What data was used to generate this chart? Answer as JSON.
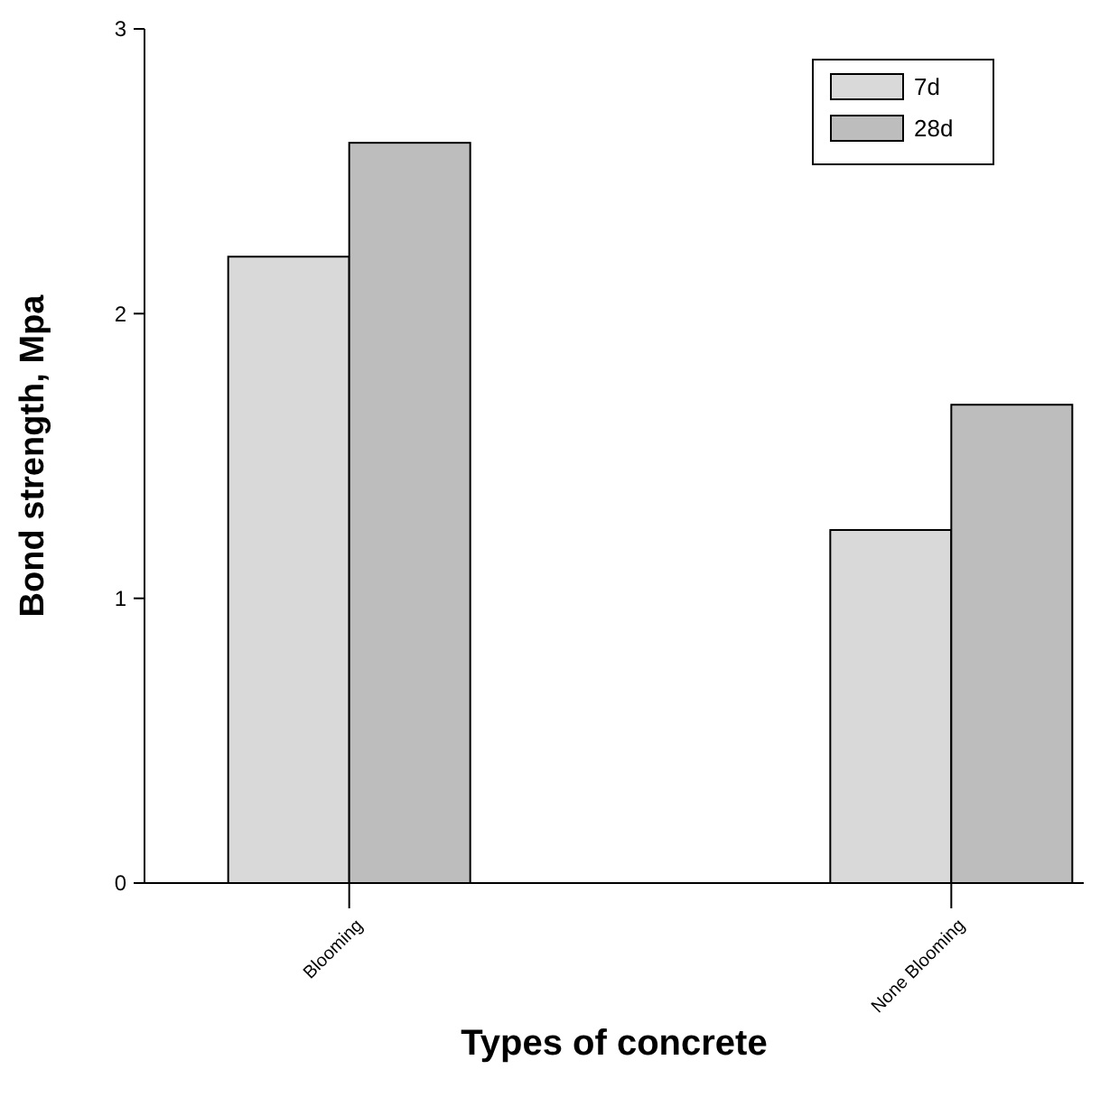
{
  "chart_data": {
    "type": "bar",
    "xlabel": "Types of concrete",
    "ylabel": "Bond strength, Mpa",
    "categories": [
      "Blooming",
      "None Blooming"
    ],
    "series": [
      {
        "name": "7d",
        "color": "#d9d9d9",
        "values": [
          2.2,
          1.24
        ]
      },
      {
        "name": "28d",
        "color": "#bdbdbd",
        "values": [
          2.6,
          1.68
        ]
      }
    ],
    "ylim": [
      0,
      3
    ],
    "yticks": [
      0,
      1,
      2,
      3
    ],
    "grid": false,
    "legend": "top right"
  }
}
